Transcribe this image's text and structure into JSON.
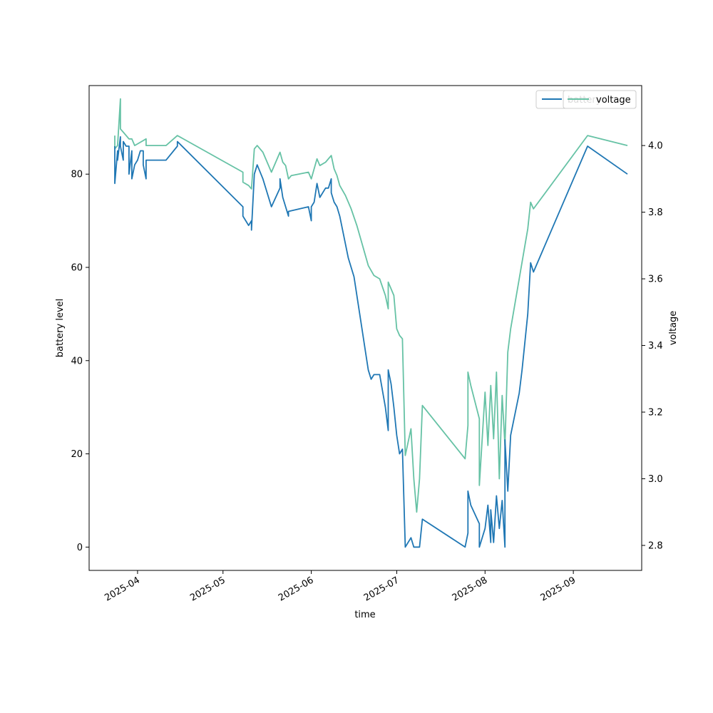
{
  "chart_data": {
    "type": "line",
    "xlabel": "time",
    "ylabel_left": "battery level",
    "ylabel_right": "voltage",
    "xlim": [
      "2025-03-15",
      "2025-09-25"
    ],
    "ylim_left": [
      -5,
      99
    ],
    "ylim_right": [
      2.725,
      4.18
    ],
    "x_ticks": [
      "2025-04",
      "2025-05",
      "2025-06",
      "2025-07",
      "2025-08",
      "2025-09"
    ],
    "y_ticks_left": [
      "0",
      "20",
      "40",
      "60",
      "80"
    ],
    "y_ticks_right": [
      "2.8",
      "3.0",
      "3.2",
      "3.4",
      "3.6",
      "3.8",
      "4.0"
    ],
    "grid": false,
    "legend_placement": "top-right",
    "series": [
      {
        "name": "battery",
        "axis": "left",
        "color": "#1f77b4",
        "points": [
          [
            "2025-03-24",
            86
          ],
          [
            "2025-03-24",
            78
          ],
          [
            "2025-03-25",
            85
          ],
          [
            "2025-03-25",
            83
          ],
          [
            "2025-03-26",
            88
          ],
          [
            "2025-03-26",
            86
          ],
          [
            "2025-03-27",
            83
          ],
          [
            "2025-03-27",
            87
          ],
          [
            "2025-03-28",
            86
          ],
          [
            "2025-03-29",
            86
          ],
          [
            "2025-03-29",
            80
          ],
          [
            "2025-03-30",
            85
          ],
          [
            "2025-03-30",
            79
          ],
          [
            "2025-03-31",
            82
          ],
          [
            "2025-04-01",
            83
          ],
          [
            "2025-04-02",
            85
          ],
          [
            "2025-04-03",
            85
          ],
          [
            "2025-04-03",
            82
          ],
          [
            "2025-04-04",
            79
          ],
          [
            "2025-04-04",
            83
          ],
          [
            "2025-04-11",
            83
          ],
          [
            "2025-04-15",
            86
          ],
          [
            "2025-04-15",
            87
          ],
          [
            "2025-05-08",
            73
          ],
          [
            "2025-05-08",
            71
          ],
          [
            "2025-05-09",
            70
          ],
          [
            "2025-05-10",
            69
          ],
          [
            "2025-05-11",
            70
          ],
          [
            "2025-05-11",
            68
          ],
          [
            "2025-05-12",
            80
          ],
          [
            "2025-05-13",
            82
          ],
          [
            "2025-05-15",
            79
          ],
          [
            "2025-05-18",
            73
          ],
          [
            "2025-05-21",
            77
          ],
          [
            "2025-05-21",
            79
          ],
          [
            "2025-05-22",
            75
          ],
          [
            "2025-05-23",
            73
          ],
          [
            "2025-05-24",
            71
          ],
          [
            "2025-05-24",
            72
          ],
          [
            "2025-05-31",
            73
          ],
          [
            "2025-06-01",
            70
          ],
          [
            "2025-06-01",
            73
          ],
          [
            "2025-06-02",
            74
          ],
          [
            "2025-06-03",
            78
          ],
          [
            "2025-06-04",
            75
          ],
          [
            "2025-06-06",
            77
          ],
          [
            "2025-06-07",
            77
          ],
          [
            "2025-06-08",
            79
          ],
          [
            "2025-06-08",
            76
          ],
          [
            "2025-06-09",
            74
          ],
          [
            "2025-06-10",
            73
          ],
          [
            "2025-06-11",
            71
          ],
          [
            "2025-06-12",
            68
          ],
          [
            "2025-06-13",
            65
          ],
          [
            "2025-06-14",
            62
          ],
          [
            "2025-06-15",
            60
          ],
          [
            "2025-06-16",
            58
          ],
          [
            "2025-06-17",
            54
          ],
          [
            "2025-06-18",
            50
          ],
          [
            "2025-06-19",
            46
          ],
          [
            "2025-06-20",
            42
          ],
          [
            "2025-06-21",
            38
          ],
          [
            "2025-06-22",
            36
          ],
          [
            "2025-06-23",
            37
          ],
          [
            "2025-06-25",
            37
          ],
          [
            "2025-06-27",
            30
          ],
          [
            "2025-06-28",
            25
          ],
          [
            "2025-06-28",
            38
          ],
          [
            "2025-06-29",
            35
          ],
          [
            "2025-06-30",
            30
          ],
          [
            "2025-07-01",
            24
          ],
          [
            "2025-07-02",
            20
          ],
          [
            "2025-07-03",
            21
          ],
          [
            "2025-07-04",
            0
          ],
          [
            "2025-07-06",
            2
          ],
          [
            "2025-07-07",
            0
          ],
          [
            "2025-07-09",
            0
          ],
          [
            "2025-07-10",
            6
          ],
          [
            "2025-07-25",
            0
          ],
          [
            "2025-07-26",
            3
          ],
          [
            "2025-07-26",
            12
          ],
          [
            "2025-07-27",
            9
          ],
          [
            "2025-07-30",
            5
          ],
          [
            "2025-07-30",
            0
          ],
          [
            "2025-08-01",
            4
          ],
          [
            "2025-08-02",
            9
          ],
          [
            "2025-08-03",
            1
          ],
          [
            "2025-08-03",
            8
          ],
          [
            "2025-08-04",
            1
          ],
          [
            "2025-08-05",
            11
          ],
          [
            "2025-08-06",
            4
          ],
          [
            "2025-08-07",
            10
          ],
          [
            "2025-08-08",
            0
          ],
          [
            "2025-08-08",
            23
          ],
          [
            "2025-08-09",
            12
          ],
          [
            "2025-08-10",
            24
          ],
          [
            "2025-08-11",
            27
          ],
          [
            "2025-08-12",
            30
          ],
          [
            "2025-08-13",
            33
          ],
          [
            "2025-08-14",
            38
          ],
          [
            "2025-08-15",
            44
          ],
          [
            "2025-08-16",
            50
          ],
          [
            "2025-08-17",
            61
          ],
          [
            "2025-08-18",
            59
          ],
          [
            "2025-09-06",
            86
          ],
          [
            "2025-09-20",
            80
          ]
        ]
      },
      {
        "name": "voltage",
        "axis": "right",
        "color": "#66c2a5",
        "points": [
          [
            "2025-03-24",
            4.03
          ],
          [
            "2025-03-24",
            3.99
          ],
          [
            "2025-03-25",
            4.0
          ],
          [
            "2025-03-26",
            4.14
          ],
          [
            "2025-03-26",
            4.05
          ],
          [
            "2025-03-27",
            4.04
          ],
          [
            "2025-03-28",
            4.03
          ],
          [
            "2025-03-29",
            4.02
          ],
          [
            "2025-03-30",
            4.02
          ],
          [
            "2025-03-31",
            4.0
          ],
          [
            "2025-04-02",
            4.01
          ],
          [
            "2025-04-04",
            4.02
          ],
          [
            "2025-04-04",
            4.0
          ],
          [
            "2025-04-11",
            4.0
          ],
          [
            "2025-04-15",
            4.03
          ],
          [
            "2025-05-08",
            3.92
          ],
          [
            "2025-05-08",
            3.89
          ],
          [
            "2025-05-10",
            3.88
          ],
          [
            "2025-05-11",
            3.87
          ],
          [
            "2025-05-12",
            3.99
          ],
          [
            "2025-05-13",
            4.0
          ],
          [
            "2025-05-15",
            3.98
          ],
          [
            "2025-05-18",
            3.92
          ],
          [
            "2025-05-21",
            3.98
          ],
          [
            "2025-05-22",
            3.95
          ],
          [
            "2025-05-23",
            3.94
          ],
          [
            "2025-05-24",
            3.9
          ],
          [
            "2025-05-25",
            3.91
          ],
          [
            "2025-05-31",
            3.92
          ],
          [
            "2025-06-01",
            3.9
          ],
          [
            "2025-06-02",
            3.93
          ],
          [
            "2025-06-03",
            3.96
          ],
          [
            "2025-06-04",
            3.94
          ],
          [
            "2025-06-06",
            3.95
          ],
          [
            "2025-06-08",
            3.97
          ],
          [
            "2025-06-09",
            3.93
          ],
          [
            "2025-06-10",
            3.91
          ],
          [
            "2025-06-11",
            3.88
          ],
          [
            "2025-06-13",
            3.85
          ],
          [
            "2025-06-15",
            3.81
          ],
          [
            "2025-06-17",
            3.76
          ],
          [
            "2025-06-19",
            3.7
          ],
          [
            "2025-06-21",
            3.64
          ],
          [
            "2025-06-23",
            3.61
          ],
          [
            "2025-06-25",
            3.6
          ],
          [
            "2025-06-27",
            3.55
          ],
          [
            "2025-06-28",
            3.51
          ],
          [
            "2025-06-28",
            3.59
          ],
          [
            "2025-06-29",
            3.57
          ],
          [
            "2025-06-30",
            3.55
          ],
          [
            "2025-07-01",
            3.45
          ],
          [
            "2025-07-02",
            3.43
          ],
          [
            "2025-07-03",
            3.42
          ],
          [
            "2025-07-04",
            3.07
          ],
          [
            "2025-07-06",
            3.15
          ],
          [
            "2025-07-07",
            3.0
          ],
          [
            "2025-07-08",
            2.9
          ],
          [
            "2025-07-09",
            3.0
          ],
          [
            "2025-07-10",
            3.22
          ],
          [
            "2025-07-25",
            3.06
          ],
          [
            "2025-07-26",
            3.16
          ],
          [
            "2025-07-26",
            3.32
          ],
          [
            "2025-07-27",
            3.28
          ],
          [
            "2025-07-30",
            3.18
          ],
          [
            "2025-07-30",
            2.98
          ],
          [
            "2025-08-01",
            3.26
          ],
          [
            "2025-08-02",
            3.1
          ],
          [
            "2025-08-03",
            3.28
          ],
          [
            "2025-08-04",
            3.12
          ],
          [
            "2025-08-05",
            3.32
          ],
          [
            "2025-08-06",
            3.0
          ],
          [
            "2025-08-07",
            3.25
          ],
          [
            "2025-08-08",
            3.1
          ],
          [
            "2025-08-09",
            3.38
          ],
          [
            "2025-08-10",
            3.45
          ],
          [
            "2025-08-11",
            3.5
          ],
          [
            "2025-08-12",
            3.55
          ],
          [
            "2025-08-13",
            3.6
          ],
          [
            "2025-08-14",
            3.65
          ],
          [
            "2025-08-15",
            3.7
          ],
          [
            "2025-08-16",
            3.75
          ],
          [
            "2025-08-17",
            3.83
          ],
          [
            "2025-08-18",
            3.81
          ],
          [
            "2025-09-06",
            4.03
          ],
          [
            "2025-09-20",
            4.0
          ]
        ]
      }
    ]
  }
}
